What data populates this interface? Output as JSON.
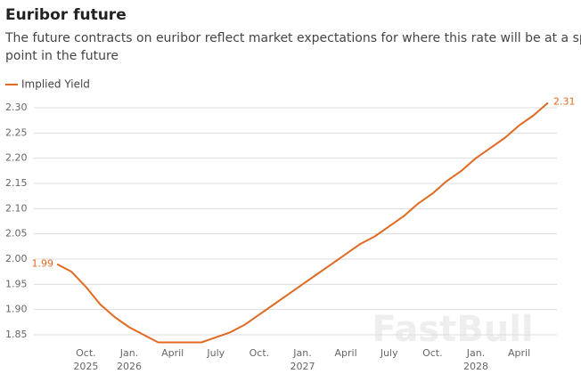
{
  "chart_data": {
    "type": "line",
    "title": "Euribor future",
    "subtitle": [
      "The future contracts on euribor reflect market expectations for where this rate will be at a specific",
      "point in the future"
    ],
    "watermark": "FastBull",
    "categories": [
      null,
      null,
      "Oct.",
      null,
      null,
      "Jan.",
      null,
      null,
      "April",
      null,
      null,
      "July",
      null,
      null,
      "Oct.",
      null,
      null,
      "Jan.",
      null,
      null,
      "April",
      null,
      null,
      "July",
      null,
      null,
      "Oct.",
      null,
      null,
      "Jan.",
      null,
      null,
      "April",
      null,
      null
    ],
    "category_years": [
      null,
      null,
      "2025",
      null,
      null,
      "2026",
      null,
      null,
      null,
      null,
      null,
      null,
      null,
      null,
      null,
      null,
      null,
      "2027",
      null,
      null,
      null,
      null,
      null,
      null,
      null,
      null,
      null,
      null,
      null,
      "2028",
      null,
      null,
      null,
      null,
      null
    ],
    "series": [
      {
        "name": "Implied Yield",
        "color": "#e06a22",
        "values": [
          1.99,
          1.975,
          1.945,
          1.91,
          1.885,
          1.865,
          1.85,
          1.835,
          1.835,
          1.835,
          1.835,
          1.845,
          1.855,
          1.87,
          1.89,
          1.91,
          1.93,
          1.95,
          1.97,
          1.99,
          2.01,
          2.03,
          2.045,
          2.065,
          2.085,
          2.11,
          2.13,
          2.155,
          2.175,
          2.2,
          2.22,
          2.24,
          2.265,
          2.285,
          2.31
        ],
        "value_labels": [
          "1.99",
          null,
          null,
          null,
          null,
          null,
          null,
          null,
          null,
          null,
          null,
          null,
          null,
          null,
          null,
          null,
          null,
          null,
          null,
          null,
          null,
          null,
          null,
          null,
          null,
          null,
          null,
          null,
          null,
          null,
          null,
          null,
          null,
          null,
          "2.31"
        ]
      }
    ],
    "ylim": [
      1.85,
      2.3
    ],
    "yticks": [
      1.85,
      {
        "value": 1.9,
        "label": "1.90"
      },
      1.95,
      {
        "value": 2.0,
        "label": "2.00"
      },
      2.05,
      {
        "value": 2.1,
        "label": "2.10"
      },
      2.15,
      {
        "value": 2.2,
        "label": "2.20"
      },
      2.25,
      {
        "value": 2.3,
        "label": "2.30"
      }
    ],
    "grid": true,
    "legend": "top-left"
  }
}
